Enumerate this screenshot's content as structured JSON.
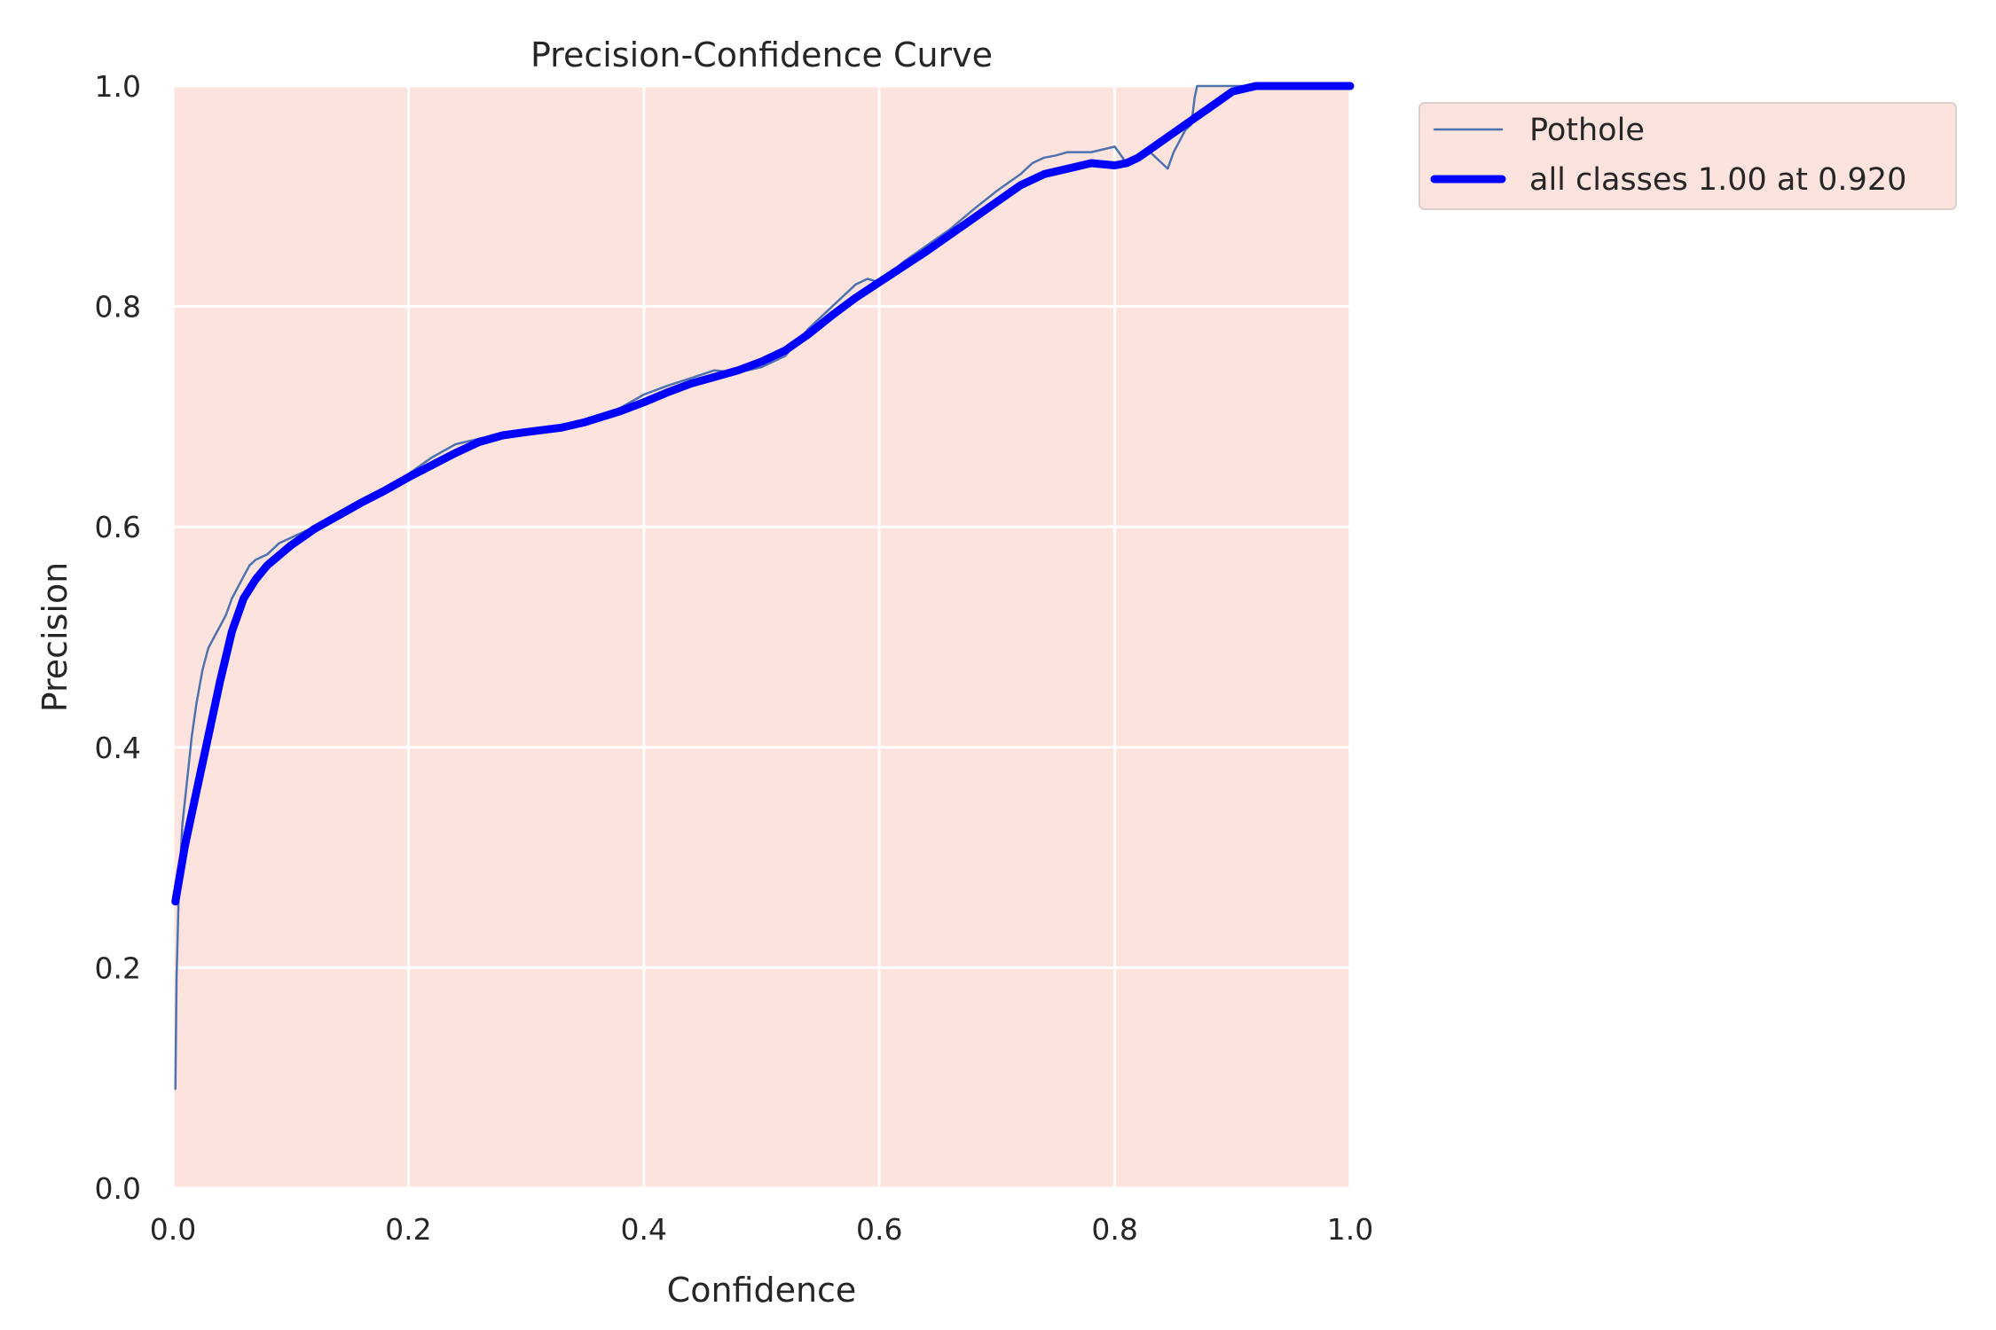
{
  "chart_data": {
    "type": "line",
    "title": "Precision-Confidence Curve",
    "xlabel": "Confidence",
    "ylabel": "Precision",
    "xlim": [
      0,
      1
    ],
    "ylim": [
      0,
      1
    ],
    "xticks": [
      "0.0",
      "0.2",
      "0.4",
      "0.6",
      "0.8",
      "1.0"
    ],
    "yticks": [
      "0.0",
      "0.2",
      "0.4",
      "0.6",
      "0.8",
      "1.0"
    ],
    "grid": true,
    "legend_position": "outside-top-right",
    "colors": {
      "plot_background": "#fde3de",
      "grid": "#ffffff"
    },
    "series": [
      {
        "name": "Pothole",
        "color": "#4c72b0",
        "x": [
          0.002,
          0.003,
          0.005,
          0.008,
          0.012,
          0.016,
          0.02,
          0.025,
          0.03,
          0.035,
          0.04,
          0.045,
          0.05,
          0.055,
          0.06,
          0.065,
          0.07,
          0.08,
          0.09,
          0.1,
          0.12,
          0.14,
          0.16,
          0.18,
          0.2,
          0.22,
          0.24,
          0.26,
          0.28,
          0.3,
          0.32,
          0.34,
          0.36,
          0.38,
          0.4,
          0.42,
          0.44,
          0.46,
          0.48,
          0.5,
          0.52,
          0.54,
          0.56,
          0.58,
          0.59,
          0.6,
          0.62,
          0.64,
          0.66,
          0.68,
          0.7,
          0.72,
          0.73,
          0.74,
          0.75,
          0.76,
          0.78,
          0.8,
          0.81,
          0.82,
          0.83,
          0.84,
          0.845,
          0.85,
          0.86,
          0.865,
          0.868,
          0.87,
          0.88,
          0.9,
          0.92,
          0.95,
          1.0
        ],
        "y": [
          0.09,
          0.19,
          0.27,
          0.33,
          0.37,
          0.41,
          0.44,
          0.47,
          0.49,
          0.5,
          0.51,
          0.52,
          0.535,
          0.545,
          0.555,
          0.565,
          0.57,
          0.575,
          0.585,
          0.59,
          0.6,
          0.61,
          0.62,
          0.633,
          0.648,
          0.663,
          0.675,
          0.68,
          0.685,
          0.687,
          0.688,
          0.692,
          0.7,
          0.708,
          0.72,
          0.728,
          0.735,
          0.742,
          0.74,
          0.745,
          0.755,
          0.78,
          0.8,
          0.82,
          0.825,
          0.822,
          0.84,
          0.855,
          0.87,
          0.888,
          0.905,
          0.92,
          0.93,
          0.935,
          0.937,
          0.94,
          0.94,
          0.945,
          0.93,
          0.935,
          0.94,
          0.93,
          0.925,
          0.94,
          0.96,
          0.965,
          0.99,
          1.0,
          1.0,
          1.0,
          1.0,
          1.0,
          1.0
        ]
      },
      {
        "name": "all classes 1.00 at 0.920",
        "color": "#0000ff",
        "x": [
          0.002,
          0.01,
          0.02,
          0.03,
          0.04,
          0.05,
          0.055,
          0.06,
          0.07,
          0.08,
          0.1,
          0.12,
          0.14,
          0.16,
          0.18,
          0.2,
          0.22,
          0.24,
          0.26,
          0.28,
          0.3,
          0.33,
          0.35,
          0.38,
          0.4,
          0.42,
          0.44,
          0.46,
          0.48,
          0.5,
          0.52,
          0.54,
          0.56,
          0.58,
          0.6,
          0.62,
          0.64,
          0.66,
          0.68,
          0.7,
          0.72,
          0.74,
          0.76,
          0.78,
          0.8,
          0.81,
          0.82,
          0.84,
          0.86,
          0.88,
          0.9,
          0.92,
          0.95,
          1.0
        ],
        "y": [
          0.26,
          0.31,
          0.36,
          0.41,
          0.46,
          0.505,
          0.52,
          0.535,
          0.552,
          0.565,
          0.583,
          0.598,
          0.61,
          0.622,
          0.633,
          0.645,
          0.656,
          0.667,
          0.677,
          0.683,
          0.686,
          0.69,
          0.695,
          0.705,
          0.713,
          0.722,
          0.73,
          0.736,
          0.742,
          0.75,
          0.76,
          0.775,
          0.792,
          0.808,
          0.822,
          0.836,
          0.85,
          0.865,
          0.88,
          0.895,
          0.91,
          0.92,
          0.925,
          0.93,
          0.928,
          0.93,
          0.935,
          0.95,
          0.965,
          0.98,
          0.995,
          1.0,
          1.0,
          1.0
        ]
      }
    ]
  }
}
